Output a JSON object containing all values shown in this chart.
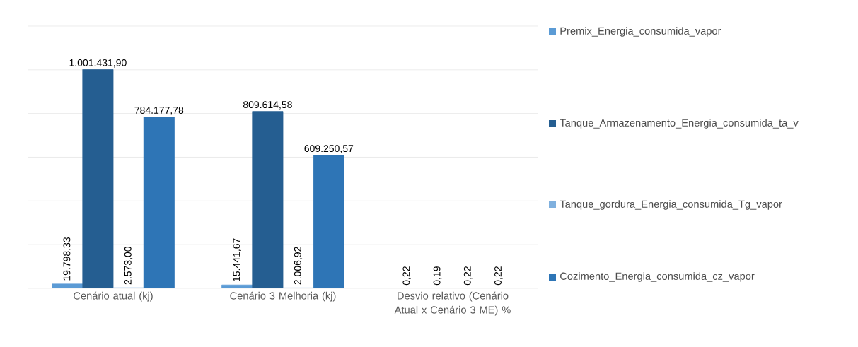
{
  "chart_data": {
    "type": "bar",
    "categories": [
      "Cenário atual (kj)",
      "Cenário 3 Melhoria (kj)",
      "Desvio relativo (Cenário Atual x Cenário 3 ME) %"
    ],
    "series": [
      {
        "name": "Premix_Energia_consumida_vapor",
        "color": "#5b9bd5",
        "values": [
          19798.33,
          15441.67,
          0.22
        ],
        "value_labels": [
          "19.798,33",
          "15.441,67",
          "0,22"
        ]
      },
      {
        "name": "Tanque_Armazenamento_Energia_consumida_ta_v",
        "color": "#255e91",
        "values": [
          1001431.9,
          809614.58,
          0.19
        ],
        "value_labels": [
          "1.001.431,90",
          "809.614,58",
          "0,19"
        ]
      },
      {
        "name": "Tanque_gordura_Energia_consumida_Tg_vapor",
        "color": "#7fb0de",
        "values": [
          2573.0,
          2006.92,
          0.22
        ],
        "value_labels": [
          "2.573,00",
          "2.006,92",
          "0,22"
        ]
      },
      {
        "name": "Cozimento_Energia_consumida_cz_vapor",
        "color": "#2e75b6",
        "values": [
          784177.78,
          609250.57,
          0.22
        ],
        "value_labels": [
          "784.177,78",
          "609.250,57",
          "0,22"
        ]
      }
    ],
    "ylim": [
      0,
      1200000
    ],
    "yticks": [
      {
        "value": 0,
        "label": null
      },
      {
        "value": 200000,
        "label": null
      },
      {
        "value": 400000,
        "label": null
      },
      {
        "value": 600000,
        "label": null
      },
      {
        "value": 800000,
        "label": null
      },
      {
        "value": 1000000,
        "label": null
      },
      {
        "value": 1200000,
        "label": null
      }
    ],
    "tick_labels": "x",
    "grid": "y",
    "legend": "right"
  }
}
